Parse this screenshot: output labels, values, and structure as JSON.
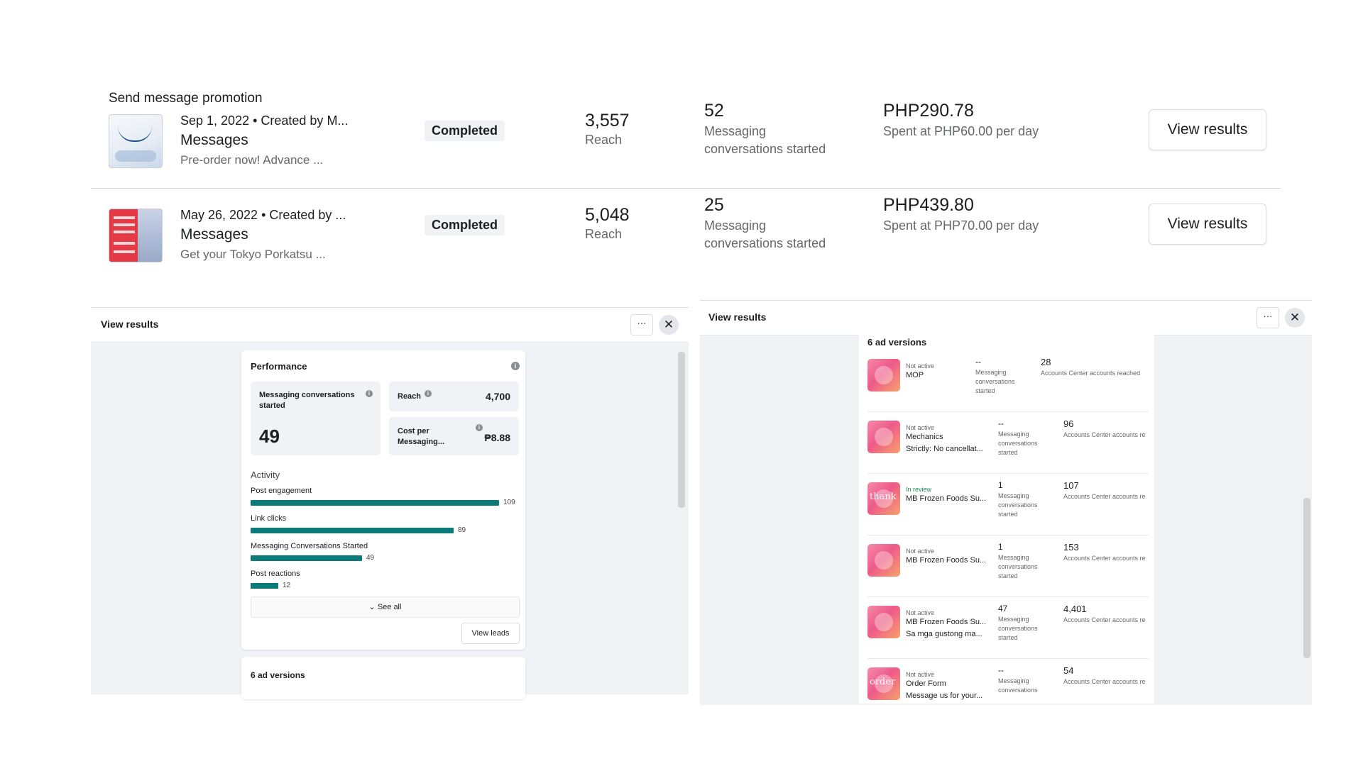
{
  "promotions": {
    "header": "Send message promotion",
    "rows": [
      {
        "date_creator": "Sep 1, 2022  •  Created by M...",
        "type": "Messages",
        "description": "Pre-order now! Advance ...",
        "status": "Completed",
        "reach_value": "3,557",
        "reach_label": "Reach",
        "convo_value": "52",
        "convo_label": "Messaging conversations started",
        "spent_value": "PHP290.78",
        "spent_label": "Spent at PHP60.00 per day",
        "button": "View results"
      },
      {
        "date_creator": "May 26, 2022  •  Created by ...",
        "type": "Messages",
        "description": "Get your Tokyo Porkatsu ...",
        "status": "Completed",
        "reach_value": "5,048",
        "reach_label": "Reach",
        "convo_value": "25",
        "convo_label": "Messaging conversations started",
        "spent_value": "PHP439.80",
        "spent_label": "Spent at PHP70.00 per day",
        "button": "View results"
      }
    ]
  },
  "left_panel": {
    "title": "View results",
    "more": "···",
    "close": "✕",
    "performance": {
      "title": "Performance",
      "metric_conversations_label": "Messaging conversations started",
      "metric_conversations_value": "49",
      "metric_reach_label": "Reach",
      "metric_reach_value": "4,700",
      "metric_cost_label": "Cost per Messaging...",
      "metric_cost_value": "₱8.88"
    },
    "activity": {
      "title": "Activity",
      "items": [
        {
          "label": "Post engagement",
          "value": 109
        },
        {
          "label": "Link clicks",
          "value": 89
        },
        {
          "label": "Messaging Conversations Started",
          "value": 49
        },
        {
          "label": "Post reactions",
          "value": 12
        }
      ]
    },
    "see_all": "See all",
    "view_leads": "View leads",
    "versions_title": "6 ad versions"
  },
  "right_panel": {
    "title": "View results",
    "more": "···",
    "close": "✕",
    "versions_title": "6 ad versions",
    "ads": [
      {
        "status": "Not active",
        "name": "MOP",
        "sub": "",
        "thumb_word": "",
        "convo": "--",
        "convo_label": "Messaging conversations started",
        "reach": "28",
        "reach_label": "Accounts Center accounts reached"
      },
      {
        "status": "Not active",
        "name": "Mechanics",
        "sub": "Strictly: No cancellat...",
        "thumb_word": "",
        "convo": "--",
        "convo_label": "Messaging conversations started",
        "reach": "96",
        "reach_label": "Accounts Center accounts re"
      },
      {
        "status": "In review",
        "name": "MB Frozen Foods Su...",
        "sub": "",
        "thumb_word": "thank",
        "convo": "1",
        "convo_label": "Messaging conversations started",
        "reach": "107",
        "reach_label": "Accounts Center accounts re"
      },
      {
        "status": "Not active",
        "name": "MB Frozen Foods Su...",
        "sub": "",
        "thumb_word": "",
        "convo": "1",
        "convo_label": "Messaging conversations started",
        "reach": "153",
        "reach_label": "Accounts Center accounts re"
      },
      {
        "status": "Not active",
        "name": "MB Frozen Foods Su...",
        "sub": "Sa mga gustong ma...",
        "thumb_word": "",
        "convo": "47",
        "convo_label": "Messaging conversations started",
        "reach": "4,401",
        "reach_label": "Accounts Center accounts re"
      },
      {
        "status": "Not active",
        "name": "Order Form",
        "sub": "Message us for your...",
        "thumb_word": "order",
        "convo": "--",
        "convo_label": "Messaging conversations",
        "reach": "54",
        "reach_label": "Accounts Center accounts re"
      }
    ]
  },
  "colors": {
    "bar": "#0a7b79",
    "review": "#1e8e5a"
  }
}
